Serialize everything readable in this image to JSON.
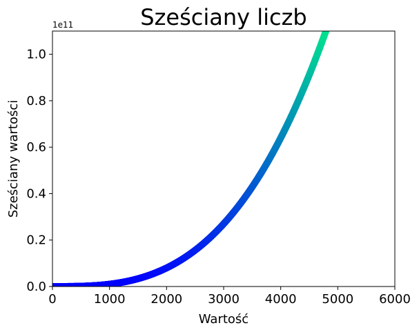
{
  "chart_data": {
    "type": "scatter",
    "title": "Sześciany liczb",
    "xlabel": "Wartość",
    "ylabel": "Sześciany wartości",
    "y_offset_label": "1e11",
    "xlim": [
      0,
      6000
    ],
    "ylim": [
      0,
      1.1
    ],
    "y_scale_factor": 100000000000,
    "grid": false,
    "x_ticks": [
      "0",
      "1000",
      "2000",
      "3000",
      "4000",
      "5000",
      "6000"
    ],
    "y_ticks": [
      "0.0",
      "0.2",
      "0.4",
      "0.6",
      "0.8",
      "1.0"
    ],
    "series": [
      {
        "function": "y = x^3",
        "x_range": [
          1,
          5000
        ],
        "colormap": "winter",
        "sample_points": [
          {
            "x": 0,
            "y": 0.0
          },
          {
            "x": 1000,
            "y": 0.01
          },
          {
            "x": 2000,
            "y": 0.08
          },
          {
            "x": 3000,
            "y": 0.27
          },
          {
            "x": 4000,
            "y": 0.64
          },
          {
            "x": 4790,
            "y": 1.1
          }
        ]
      }
    ],
    "colors": {
      "low": "#0000ff",
      "high": "#00ff80"
    }
  }
}
